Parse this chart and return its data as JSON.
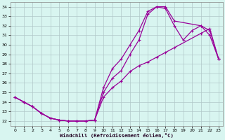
{
  "xlabel": "Windchill (Refroidissement éolien,°C)",
  "bg_color": "#d8f5f0",
  "grid_color": "#b0c8c8",
  "line_color": "#990099",
  "xlim": [
    -0.5,
    23.5
  ],
  "ylim": [
    21.5,
    34.5
  ],
  "xticks": [
    0,
    1,
    2,
    3,
    4,
    5,
    6,
    7,
    8,
    9,
    10,
    11,
    12,
    13,
    14,
    15,
    16,
    17,
    18,
    19,
    20,
    21,
    22,
    23
  ],
  "yticks": [
    22,
    23,
    24,
    25,
    26,
    27,
    28,
    29,
    30,
    31,
    32,
    33,
    34
  ],
  "line1_x": [
    0,
    1,
    2,
    3,
    4,
    5,
    6,
    7,
    8,
    9,
    10,
    11,
    12,
    13,
    14,
    15,
    16,
    17,
    18,
    21,
    22,
    23
  ],
  "line1_y": [
    24.5,
    24.0,
    23.5,
    22.8,
    22.3,
    22.1,
    22.0,
    22.0,
    22.0,
    22.1,
    24.5,
    25.5,
    26.2,
    27.2,
    27.8,
    28.2,
    28.7,
    29.2,
    29.7,
    31.2,
    31.7,
    28.5
  ],
  "line2_x": [
    0,
    1,
    2,
    3,
    4,
    5,
    6,
    7,
    8,
    9,
    10,
    11,
    12,
    13,
    14,
    15,
    16,
    17,
    18,
    21,
    22,
    23
  ],
  "line2_y": [
    24.5,
    24.0,
    23.5,
    22.8,
    22.3,
    22.1,
    22.0,
    22.0,
    22.0,
    22.1,
    25.5,
    27.5,
    28.5,
    30.0,
    31.5,
    33.5,
    34.0,
    34.0,
    32.5,
    32.0,
    31.0,
    28.5
  ],
  "line3_x": [
    0,
    1,
    2,
    3,
    4,
    5,
    6,
    7,
    8,
    9,
    10,
    11,
    12,
    13,
    14,
    15,
    16,
    17,
    18,
    19,
    20,
    21,
    22,
    23
  ],
  "line3_y": [
    24.5,
    24.0,
    23.5,
    22.8,
    22.3,
    22.1,
    22.0,
    22.0,
    22.0,
    22.1,
    25.0,
    26.5,
    27.3,
    29.0,
    30.5,
    33.2,
    34.0,
    33.8,
    32.0,
    30.5,
    31.5,
    32.0,
    31.5,
    28.5
  ],
  "marker_style": "+"
}
